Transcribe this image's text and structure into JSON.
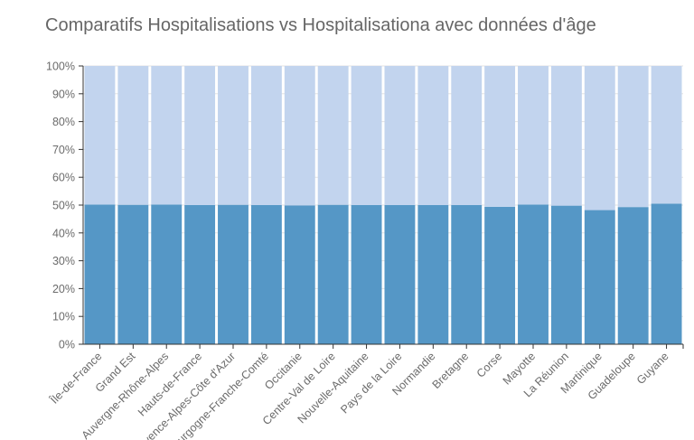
{
  "chart_data": {
    "type": "bar",
    "stacked": true,
    "normalized": true,
    "title": "Comparatifs Hospitalisations vs Hospitalisationa avec données d'âge",
    "xlabel": "",
    "ylabel": "",
    "ylim": [
      0,
      100
    ],
    "y_ticks": [
      "0%",
      "10%",
      "20%",
      "30%",
      "40%",
      "50%",
      "60%",
      "70%",
      "80%",
      "90%",
      "100%"
    ],
    "grid": true,
    "categories": [
      "Île-de-France",
      "Grand Est",
      "Auvergne-Rhône-Alpes",
      "Hauts-de-France",
      "Provence-Alpes-Côte d'Azur",
      "Bourgogne-Franche-Comté",
      "Occitanie",
      "Centre-Val de Loire",
      "Nouvelle-Aquitaine",
      "Pays de la Loire",
      "Normandie",
      "Bretagne",
      "Corse",
      "Mayotte",
      "La Réunion",
      "Martinique",
      "Guadeloupe",
      "Guyane"
    ],
    "series": [
      {
        "color": "#5597c6",
        "values": [
          50.2,
          50.1,
          50.2,
          50.0,
          50.1,
          50.0,
          49.9,
          50.1,
          50.0,
          50.0,
          50.0,
          50.0,
          49.4,
          50.2,
          49.8,
          48.2,
          49.3,
          50.5
        ]
      },
      {
        "color": "#c2d4ee",
        "values": [
          49.8,
          49.9,
          49.8,
          50.0,
          49.9,
          50.0,
          50.1,
          49.9,
          50.0,
          50.0,
          50.0,
          50.0,
          50.6,
          49.8,
          50.2,
          51.8,
          50.7,
          49.5
        ]
      }
    ]
  }
}
